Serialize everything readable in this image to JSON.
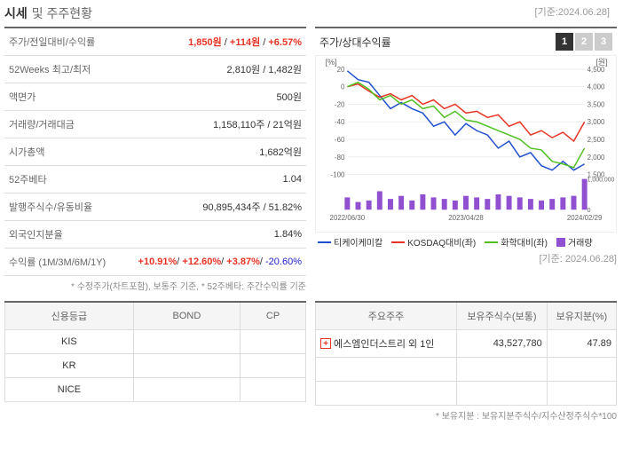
{
  "header": {
    "title_bold": "시세",
    "title_normal": "및 주주현황",
    "date_ref": "[기준:2024.06.28]"
  },
  "stock_info": {
    "rows": [
      {
        "label": "주가/전일대비/수익률",
        "value_parts": [
          {
            "text": "1,850원",
            "class": "red-text"
          },
          {
            "text": " / ",
            "class": ""
          },
          {
            "text": "+114원",
            "class": "red-text"
          },
          {
            "text": " / ",
            "class": ""
          },
          {
            "text": "+6.57%",
            "class": "red-text"
          }
        ]
      },
      {
        "label": "52Weeks 최고/최저",
        "value": "2,810원 / 1,482원"
      },
      {
        "label": "액면가",
        "value": "500원"
      },
      {
        "label": "거래량/거래대금",
        "value": "1,158,110주 / 21억원"
      },
      {
        "label": "시가총액",
        "value": "1,682억원"
      },
      {
        "label": "52주베타",
        "value": "1.04"
      },
      {
        "label": "발행주식수/유동비율",
        "value": "90,895,434주 / 51.82%"
      },
      {
        "label": "외국인지분율",
        "value": "1.84%"
      },
      {
        "label": "수익률 (1M/3M/6M/1Y)",
        "value_parts": [
          {
            "text": "+10.91%",
            "class": "red-text"
          },
          {
            "text": "/ ",
            "class": ""
          },
          {
            "text": "+12.60%",
            "class": "red-text"
          },
          {
            "text": "/ ",
            "class": ""
          },
          {
            "text": "+3.87%",
            "class": "red-text"
          },
          {
            "text": "/ ",
            "class": ""
          },
          {
            "text": "-20.60%",
            "class": "blue-text"
          }
        ]
      }
    ],
    "footnote": "* 수정주가(차트포함), 보통주 기준, * 52주베타: 주간수익률 기준"
  },
  "chart": {
    "title": "주가/상대수익률",
    "tabs": [
      "1",
      "2",
      "3"
    ],
    "active_tab": 0,
    "left_axis": {
      "label": "[%]",
      "min": -100,
      "max": 20,
      "ticks": [
        20,
        0,
        -20,
        -40,
        -60,
        -80,
        -100
      ]
    },
    "right_axis": {
      "label": "[원]",
      "min": 1500,
      "max": 4500,
      "ticks": [
        4500,
        4000,
        3500,
        3000,
        2500,
        2000,
        1500
      ]
    },
    "volume_axis": {
      "max": 1000000,
      "tick": "1,000,000"
    },
    "x_labels": [
      "2022/06/30",
      "2023/04/28",
      "2024/02/29"
    ],
    "series": {
      "blue": {
        "name": "티케이케미칼",
        "color": "#2050d0",
        "data": [
          18,
          8,
          5,
          -10,
          -25,
          -18,
          -25,
          -30,
          -45,
          -40,
          -55,
          -42,
          -50,
          -55,
          -70,
          -62,
          -80,
          -75,
          -90,
          -95,
          -85,
          -95,
          -88
        ]
      },
      "red": {
        "name": "KOSDAQ대비(좌)",
        "color": "#e73323",
        "data": [
          0,
          3,
          -5,
          -12,
          -8,
          -15,
          -10,
          -20,
          -15,
          -25,
          -20,
          -30,
          -28,
          -35,
          -32,
          -45,
          -40,
          -55,
          -50,
          -58,
          -52,
          -62,
          -40
        ]
      },
      "green": {
        "name": "화학대비(좌)",
        "color": "#50c020",
        "data": [
          0,
          5,
          -3,
          -15,
          -10,
          -20,
          -15,
          -25,
          -22,
          -35,
          -28,
          -38,
          -40,
          -45,
          -50,
          -55,
          -60,
          -70,
          -72,
          -85,
          -88,
          -92,
          -70
        ]
      },
      "volume": {
        "name": "거래량",
        "color": "#9050d0",
        "data": [
          80,
          50,
          60,
          120,
          70,
          90,
          60,
          100,
          80,
          70,
          60,
          90,
          80,
          70,
          100,
          90,
          80,
          70,
          60,
          70,
          80,
          90,
          200
        ]
      }
    },
    "date_ref": "[기준: 2024.06.28]"
  },
  "rating_table": {
    "headers": [
      "신용등급",
      "BOND",
      "CP"
    ],
    "rows": [
      {
        "agency": "KIS",
        "bond": "",
        "cp": ""
      },
      {
        "agency": "KR",
        "bond": "",
        "cp": ""
      },
      {
        "agency": "NICE",
        "bond": "",
        "cp": ""
      }
    ]
  },
  "shareholder_table": {
    "headers": [
      "주요주주",
      "보유주식수(보통)",
      "보유지분(%)"
    ],
    "rows": [
      {
        "name": "에스엠인더스트리 외 1인",
        "shares": "43,527,780",
        "percent": "47.89"
      }
    ],
    "empty_rows": 2,
    "footnote": "* 보유지분 : 보유지분주식수/지수산정주식수*100"
  }
}
